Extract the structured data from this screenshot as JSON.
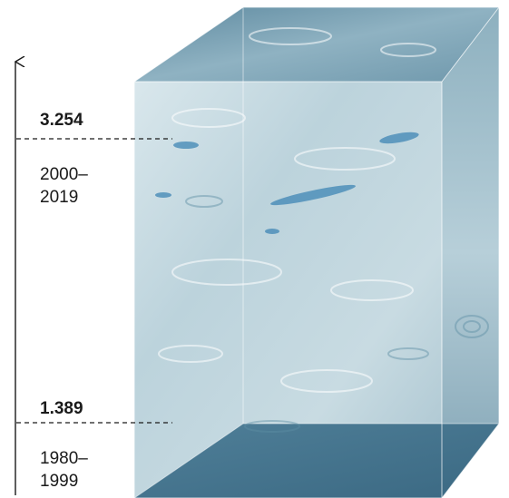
{
  "markers": [
    {
      "value": "3.254",
      "period_line1": "2000–",
      "period_line2": "2019"
    },
    {
      "value": "1.389",
      "period_line1": "1980–",
      "period_line2": "1999"
    }
  ],
  "colors": {
    "water_light": "#d7e6ec",
    "water_mid": "#a9c6d1",
    "water_dark": "#5d8ea4",
    "water_deep": "#3f6f8c",
    "ripple": "#3f86b4",
    "line": "#1a1a1a"
  }
}
